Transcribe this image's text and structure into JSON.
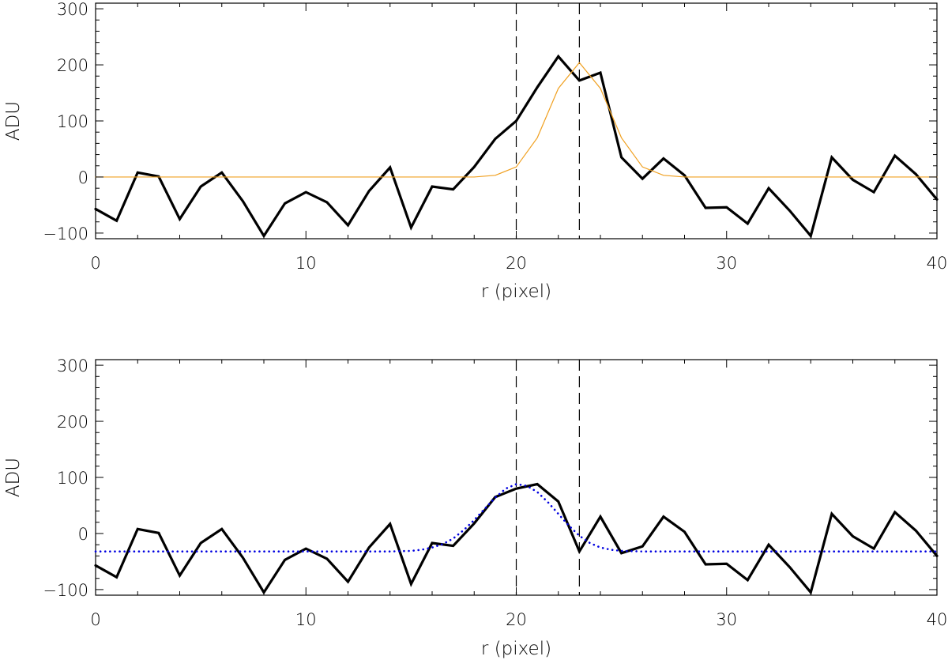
{
  "chart_data": [
    {
      "type": "line",
      "xlabel": "r (pixel)",
      "ylabel": "ADU",
      "xlim": [
        0,
        40
      ],
      "ylim": [
        -110,
        310
      ],
      "xticks": [
        0,
        10,
        20,
        30,
        40
      ],
      "yticks": [
        -100,
        0,
        100,
        200,
        300
      ],
      "ytick_labels": [
        "−100",
        "0",
        "100",
        "200",
        "300"
      ],
      "xtick_labels": [
        "0",
        "10",
        "20",
        "30",
        "40"
      ],
      "vlines": [
        20,
        23
      ],
      "grid": false,
      "series": [
        {
          "style": "solid-thick",
          "color": "#000000",
          "x": [
            0,
            1,
            2,
            3,
            4,
            5,
            6,
            7,
            8,
            9,
            10,
            11,
            12,
            13,
            14,
            15,
            16,
            17,
            18,
            19,
            20,
            21,
            22,
            23,
            24,
            25,
            26,
            27,
            28,
            29,
            30,
            31,
            32,
            33,
            34,
            35,
            36,
            37,
            38,
            39,
            40
          ],
          "values": [
            -57,
            -78,
            8,
            1,
            -75,
            -17,
            8,
            -43,
            -105,
            -47,
            -27,
            -45,
            -86,
            -25,
            17,
            -90,
            -17,
            -22,
            18,
            68,
            100,
            160,
            215,
            172,
            186,
            35,
            -3,
            33,
            3,
            -55,
            -54,
            -83,
            -20,
            -60,
            -105,
            35,
            -5,
            -27,
            38,
            5,
            -40
          ]
        },
        {
          "style": "solid-thin",
          "color": "#f0a020",
          "x": [
            0,
            1,
            2,
            3,
            4,
            5,
            6,
            7,
            8,
            9,
            10,
            11,
            12,
            13,
            14,
            15,
            16,
            17,
            18,
            19,
            20,
            21,
            22,
            23,
            24,
            25,
            26,
            27,
            28,
            29,
            30,
            31,
            32,
            33,
            34,
            35,
            36,
            37,
            38,
            39,
            40
          ],
          "values": [
            0,
            0,
            0,
            0,
            0,
            0,
            0,
            0,
            0,
            0,
            0,
            0,
            0,
            0,
            0,
            0,
            0,
            0,
            0,
            3,
            18,
            70,
            158,
            204,
            158,
            70,
            18,
            3,
            0,
            0,
            0,
            0,
            0,
            0,
            0,
            0,
            0,
            0,
            0,
            0,
            0
          ]
        }
      ]
    },
    {
      "type": "line",
      "xlabel": "r (pixel)",
      "ylabel": "ADU",
      "xlim": [
        0,
        40
      ],
      "ylim": [
        -110,
        310
      ],
      "xticks": [
        0,
        10,
        20,
        30,
        40
      ],
      "yticks": [
        -100,
        0,
        100,
        200,
        300
      ],
      "ytick_labels": [
        "−100",
        "0",
        "100",
        "200",
        "300"
      ],
      "xtick_labels": [
        "0",
        "10",
        "20",
        "30",
        "40"
      ],
      "vlines": [
        20,
        23
      ],
      "grid": false,
      "series": [
        {
          "style": "solid-thick",
          "color": "#000000",
          "x": [
            0,
            1,
            2,
            3,
            4,
            5,
            6,
            7,
            8,
            9,
            10,
            11,
            12,
            13,
            14,
            15,
            16,
            17,
            18,
            19,
            20,
            21,
            22,
            23,
            24,
            25,
            26,
            27,
            28,
            29,
            30,
            31,
            32,
            33,
            34,
            35,
            36,
            37,
            38,
            39,
            40
          ],
          "values": [
            -57,
            -78,
            8,
            1,
            -75,
            -17,
            8,
            -43,
            -105,
            -47,
            -27,
            -45,
            -86,
            -25,
            17,
            -90,
            -17,
            -22,
            18,
            65,
            80,
            88,
            57,
            -32,
            30,
            -35,
            -23,
            30,
            3,
            -55,
            -54,
            -83,
            -20,
            -60,
            -105,
            35,
            -5,
            -27,
            38,
            5,
            -40
          ]
        },
        {
          "style": "dotted",
          "color": "#0000e0",
          "x": [
            0,
            1,
            2,
            3,
            4,
            5,
            6,
            7,
            8,
            9,
            10,
            11,
            12,
            13,
            14,
            15,
            15.5,
            16,
            16.5,
            17,
            17.5,
            18,
            18.5,
            19,
            19.5,
            20,
            20.5,
            21,
            21.5,
            22,
            22.5,
            23,
            23.5,
            24,
            24.5,
            25,
            26,
            27,
            28,
            29,
            30,
            31,
            32,
            33,
            34,
            35,
            36,
            37,
            38,
            39,
            40
          ],
          "values": [
            -32,
            -32,
            -32,
            -32,
            -32,
            -32,
            -32,
            -32,
            -32,
            -32,
            -32,
            -32,
            -32,
            -32,
            -32,
            -31,
            -29,
            -25,
            -19,
            -9,
            6,
            24,
            44,
            64,
            80,
            88,
            85,
            74,
            56,
            35,
            14,
            -4,
            -17,
            -25,
            -29,
            -31,
            -32,
            -32,
            -32,
            -32,
            -32,
            -32,
            -32,
            -32,
            -32,
            -32,
            -32,
            -32,
            -32,
            -32,
            -32
          ]
        }
      ]
    }
  ]
}
